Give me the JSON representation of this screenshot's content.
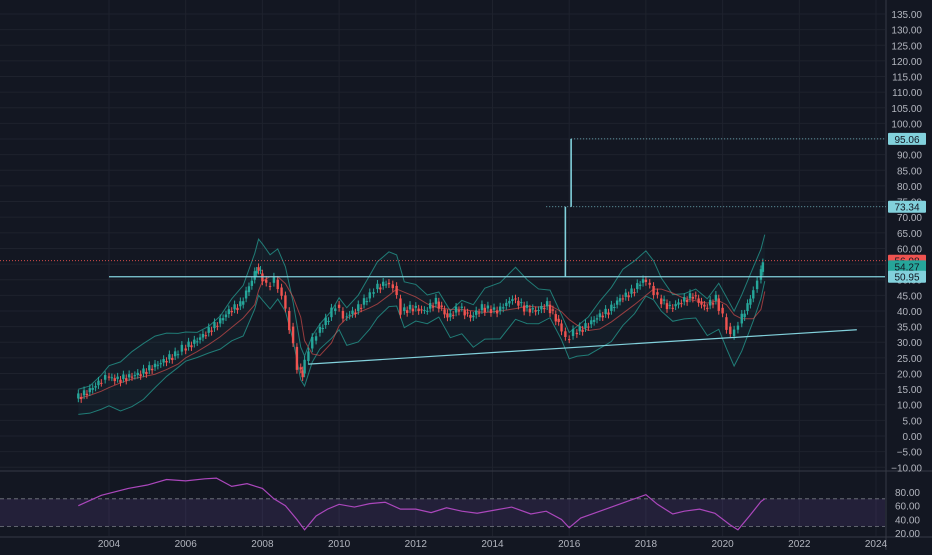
{
  "chart_data": {
    "type": "candlestick",
    "x_ticks": [
      "2004",
      "2006",
      "2008",
      "2010",
      "2012",
      "2014",
      "2016",
      "2018",
      "2020",
      "2022",
      "2024"
    ],
    "y_ticks": [
      "135.00",
      "130.00",
      "125.00",
      "120.00",
      "115.00",
      "110.00",
      "105.00",
      "100.00",
      "95.00",
      "90.00",
      "85.00",
      "80.00",
      "75.00",
      "70.00",
      "65.00",
      "60.00",
      "55.00",
      "50.00",
      "45.00",
      "40.00",
      "35.00",
      "30.00",
      "25.00",
      "20.00",
      "15.00",
      "10.00",
      "5.00",
      "0.00",
      "−5.00",
      "−10.00"
    ],
    "ylim": [
      -10,
      135
    ],
    "xlim": [
      2003.0,
      2024.0
    ],
    "price_labels": [
      {
        "text": "95.06",
        "value": 95.06,
        "color": "#82d1dc"
      },
      {
        "text": "73.34",
        "value": 73.34,
        "color": "#82d1dc"
      },
      {
        "text": "56.08",
        "value": 56.08,
        "color": "#ef5350"
      },
      {
        "text": "54.27",
        "value": 54.27,
        "color": "#26a69a"
      },
      {
        "text": "50.95",
        "value": 50.95,
        "color": "#82d1dc"
      }
    ],
    "series": [
      {
        "name": "price",
        "points": [
          [
            2003.2,
            12
          ],
          [
            2003.5,
            14
          ],
          [
            2003.8,
            17
          ],
          [
            2004.0,
            19
          ],
          [
            2004.3,
            18
          ],
          [
            2004.6,
            19
          ],
          [
            2004.9,
            20
          ],
          [
            2005.2,
            22
          ],
          [
            2005.5,
            24
          ],
          [
            2005.8,
            26
          ],
          [
            2006.0,
            28
          ],
          [
            2006.3,
            30
          ],
          [
            2006.6,
            33
          ],
          [
            2006.9,
            36
          ],
          [
            2007.2,
            40
          ],
          [
            2007.5,
            42
          ],
          [
            2007.8,
            50
          ],
          [
            2007.9,
            54
          ],
          [
            2008.0,
            52
          ],
          [
            2008.2,
            48
          ],
          [
            2008.4,
            50
          ],
          [
            2008.6,
            45
          ],
          [
            2008.8,
            35
          ],
          [
            2009.0,
            22
          ],
          [
            2009.1,
            20
          ],
          [
            2009.3,
            28
          ],
          [
            2009.5,
            33
          ],
          [
            2009.8,
            38
          ],
          [
            2010.0,
            42
          ],
          [
            2010.2,
            38
          ],
          [
            2010.5,
            40
          ],
          [
            2010.8,
            44
          ],
          [
            2011.0,
            47
          ],
          [
            2011.3,
            49
          ],
          [
            2011.5,
            48
          ],
          [
            2011.7,
            40
          ],
          [
            2012.0,
            41
          ],
          [
            2012.3,
            40
          ],
          [
            2012.6,
            43
          ],
          [
            2012.9,
            38
          ],
          [
            2013.2,
            41
          ],
          [
            2013.5,
            38
          ],
          [
            2013.8,
            41
          ],
          [
            2014.2,
            40
          ],
          [
            2014.6,
            44
          ],
          [
            2014.9,
            41
          ],
          [
            2015.2,
            40
          ],
          [
            2015.5,
            42
          ],
          [
            2015.8,
            36
          ],
          [
            2016.0,
            31
          ],
          [
            2016.2,
            33
          ],
          [
            2016.5,
            35
          ],
          [
            2016.8,
            38
          ],
          [
            2017.1,
            40
          ],
          [
            2017.4,
            44
          ],
          [
            2017.7,
            46
          ],
          [
            2018.0,
            50
          ],
          [
            2018.2,
            48
          ],
          [
            2018.4,
            44
          ],
          [
            2018.7,
            41
          ],
          [
            2019.0,
            43
          ],
          [
            2019.3,
            45
          ],
          [
            2019.6,
            41
          ],
          [
            2019.9,
            44
          ],
          [
            2020.1,
            38
          ],
          [
            2020.3,
            32
          ],
          [
            2020.5,
            36
          ],
          [
            2020.8,
            44
          ],
          [
            2021.0,
            50
          ],
          [
            2021.1,
            55
          ]
        ]
      }
    ],
    "overlays": {
      "resistance_level": 50.95,
      "support_line": [
        [
          2009.2,
          23
        ],
        [
          2023.5,
          34
        ]
      ],
      "spike_2015": [
        [
          2015.9,
          51
        ],
        [
          2015.9,
          73.34
        ]
      ],
      "spike_2016": [
        [
          2016.05,
          73.34
        ],
        [
          2016.05,
          95.06
        ]
      ]
    },
    "rsi": {
      "y_ticks": [
        "80.00",
        "60.00",
        "40.00",
        "20.00"
      ],
      "ylim": [
        16,
        106
      ],
      "upper": 70,
      "lower": 30,
      "points": [
        [
          2003.2,
          60
        ],
        [
          2003.8,
          75
        ],
        [
          2004.5,
          85
        ],
        [
          2005.0,
          90
        ],
        [
          2005.5,
          98
        ],
        [
          2006.0,
          96
        ],
        [
          2006.5,
          99
        ],
        [
          2006.8,
          100
        ],
        [
          2007.2,
          88
        ],
        [
          2007.6,
          92
        ],
        [
          2008.0,
          85
        ],
        [
          2008.3,
          70
        ],
        [
          2008.6,
          60
        ],
        [
          2008.9,
          40
        ],
        [
          2009.1,
          25
        ],
        [
          2009.4,
          45
        ],
        [
          2009.7,
          55
        ],
        [
          2010.0,
          62
        ],
        [
          2010.4,
          58
        ],
        [
          2010.8,
          63
        ],
        [
          2011.2,
          65
        ],
        [
          2011.6,
          55
        ],
        [
          2012.0,
          55
        ],
        [
          2012.4,
          50
        ],
        [
          2012.8,
          57
        ],
        [
          2013.2,
          52
        ],
        [
          2013.6,
          49
        ],
        [
          2014.0,
          53
        ],
        [
          2014.5,
          58
        ],
        [
          2015.0,
          48
        ],
        [
          2015.4,
          52
        ],
        [
          2015.8,
          40
        ],
        [
          2016.0,
          28
        ],
        [
          2016.3,
          42
        ],
        [
          2016.7,
          50
        ],
        [
          2017.2,
          60
        ],
        [
          2017.7,
          70
        ],
        [
          2018.0,
          76
        ],
        [
          2018.3,
          62
        ],
        [
          2018.7,
          48
        ],
        [
          2019.0,
          52
        ],
        [
          2019.4,
          55
        ],
        [
          2019.8,
          49
        ],
        [
          2020.2,
          32
        ],
        [
          2020.4,
          25
        ],
        [
          2020.7,
          45
        ],
        [
          2021.0,
          66
        ],
        [
          2021.1,
          70
        ]
      ]
    }
  }
}
